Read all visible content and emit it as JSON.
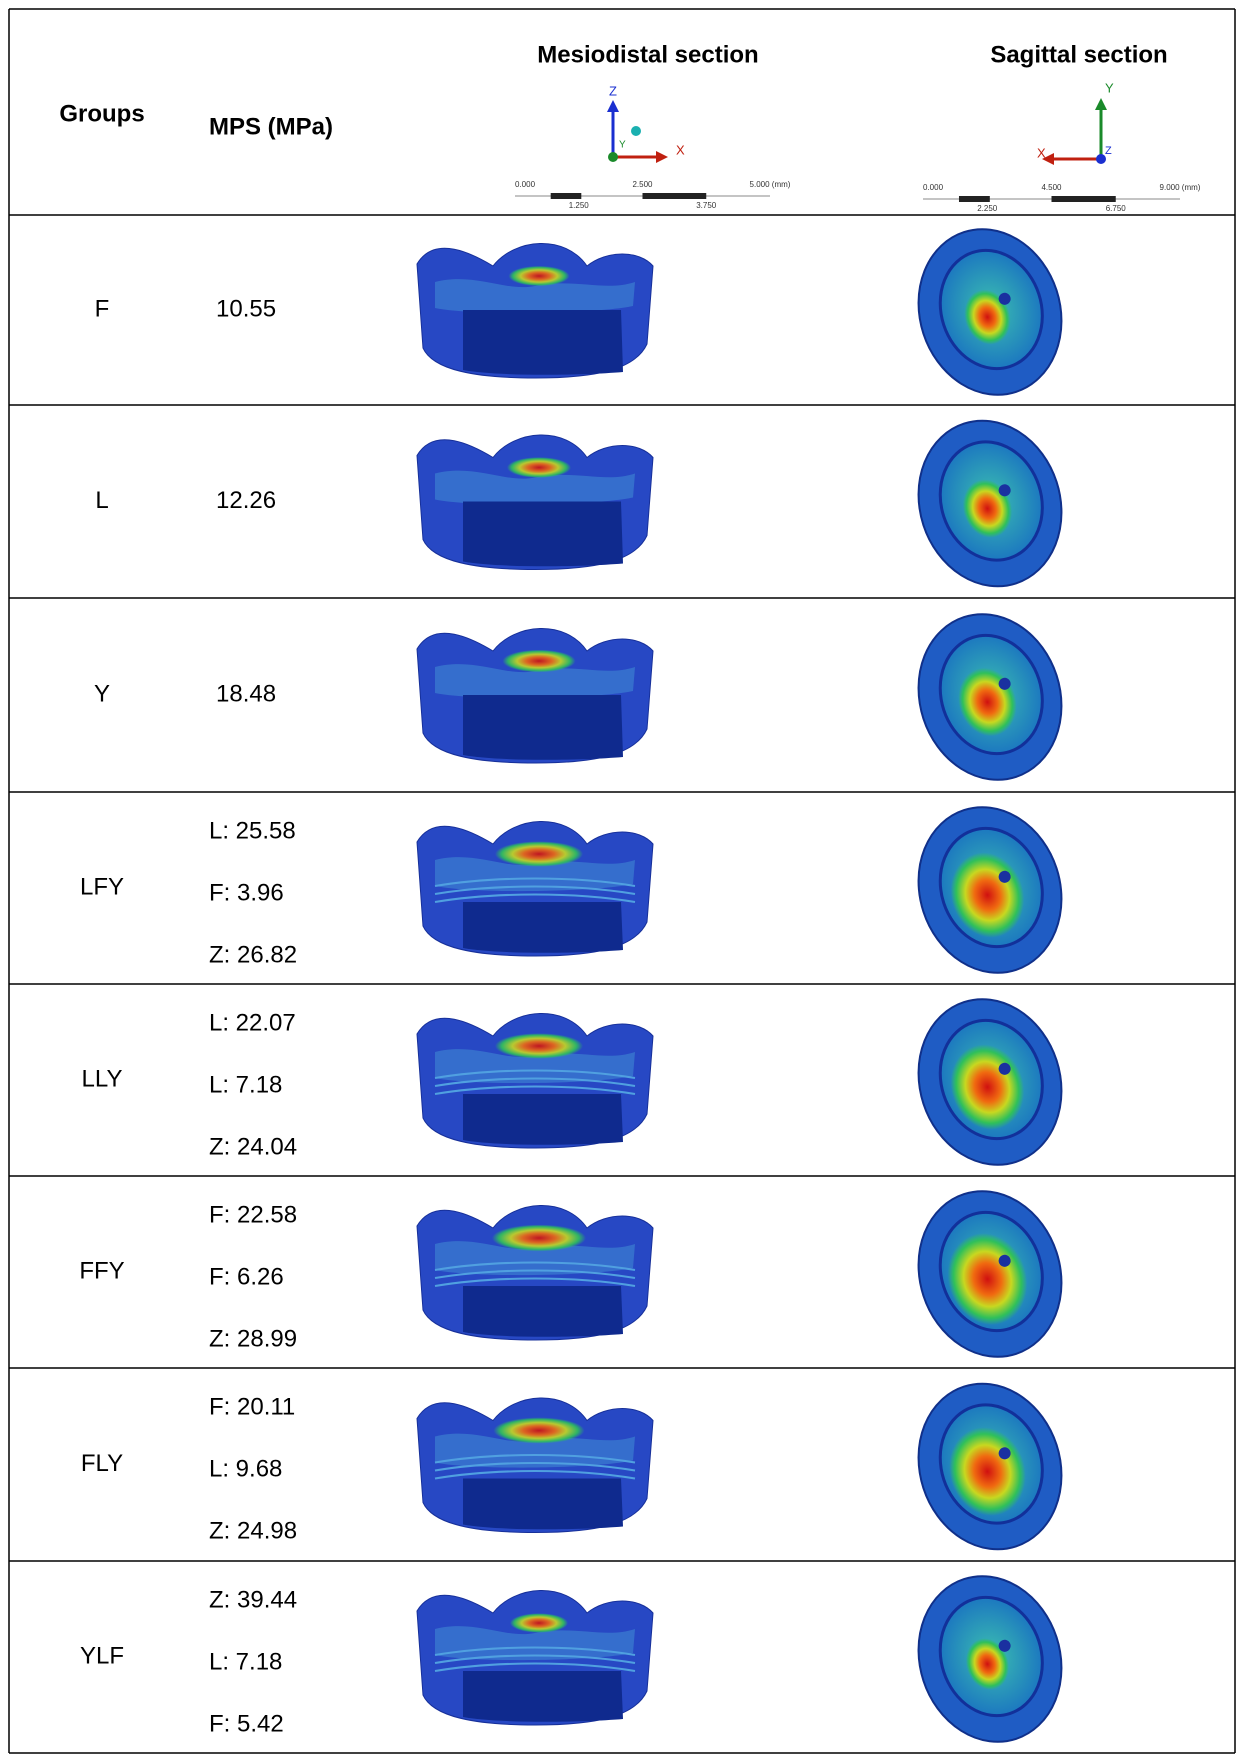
{
  "header": {
    "groups": "Groups",
    "mps": "MPS (MPa)",
    "mesiodistal": "Mesiodistal section",
    "sagittal": "Sagittal section"
  },
  "mesiodistal_axes": {
    "z": "Z",
    "x": "X",
    "y": "Y",
    "scale_top": [
      "0.000",
      "2.500",
      "5.000 (mm)"
    ],
    "scale_bottom": [
      "1.250",
      "3.750"
    ]
  },
  "sagittal_axes": {
    "y": "Y",
    "x": "X",
    "z": "Z",
    "scale_top": [
      "0.000",
      "4.500",
      "9.000 (mm)"
    ],
    "scale_bottom": [
      "2.250",
      "6.750"
    ]
  },
  "rows": [
    {
      "group": "F",
      "mps": [
        "10.55"
      ]
    },
    {
      "group": "L",
      "mps": [
        "12.26"
      ]
    },
    {
      "group": "Y",
      "mps": [
        "18.48"
      ]
    },
    {
      "group": "LFY",
      "mps": [
        "L: 25.58",
        "F: 3.96",
        "Z: 26.82"
      ]
    },
    {
      "group": "LLY",
      "mps": [
        "L: 22.07",
        "L: 7.18",
        "Z: 24.04"
      ]
    },
    {
      "group": "FFY",
      "mps": [
        "F: 22.58",
        "F: 6.26",
        "Z: 28.99"
      ]
    },
    {
      "group": "FLY",
      "mps": [
        "F: 20.11",
        "L: 9.68",
        "Z: 24.98"
      ]
    },
    {
      "group": "YLF",
      "mps": [
        "Z: 39.44",
        "L: 7.18",
        "F: 5.42"
      ]
    }
  ]
}
